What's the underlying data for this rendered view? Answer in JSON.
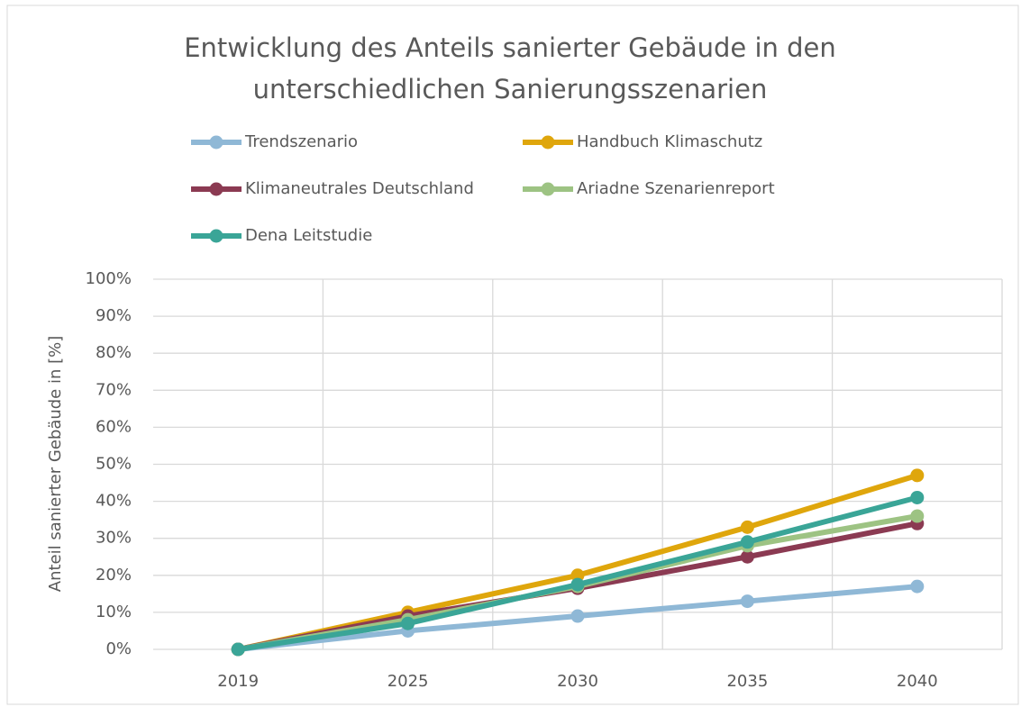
{
  "chart_data": {
    "type": "line",
    "title": "Entwicklung des Anteils sanierter Gebäude in den unterschiedlichen Sanierungsszenarien",
    "y_label": "Anteil sanierter Gebäude in [%]",
    "categories": [
      "2019",
      "2025",
      "2030",
      "2035",
      "2040"
    ],
    "series": [
      {
        "name": "Trendszenario",
        "color": "#8fb8d6",
        "values": [
          0,
          5,
          9,
          13,
          17
        ]
      },
      {
        "name": "Handbuch Klimaschutz",
        "color": "#dfa60c",
        "values": [
          0,
          10,
          20,
          33,
          47
        ]
      },
      {
        "name": "Klimaneutrales Deutschland",
        "color": "#8b3a52",
        "values": [
          0,
          9,
          16.5,
          25,
          34
        ]
      },
      {
        "name": "Ariadne Szenarienreport",
        "color": "#9dc383",
        "values": [
          0,
          8,
          17,
          28,
          36
        ]
      },
      {
        "name": "Dena Leitstudie",
        "color": "#3aa597",
        "values": [
          0,
          7,
          17.5,
          29,
          41
        ]
      }
    ],
    "ylim": [
      0,
      100
    ],
    "yticks": [
      {
        "value": 0,
        "label": "0%"
      },
      {
        "value": 10,
        "label": "10%"
      },
      {
        "value": 20,
        "label": "20%"
      },
      {
        "value": 30,
        "label": "30%"
      },
      {
        "value": 40,
        "label": "40%"
      },
      {
        "value": 50,
        "label": "50%"
      },
      {
        "value": 60,
        "label": "60%"
      },
      {
        "value": 70,
        "label": "70%"
      },
      {
        "value": 80,
        "label": "80%"
      },
      {
        "value": 90,
        "label": "90%"
      },
      {
        "value": 100,
        "label": "100%"
      }
    ],
    "grid": true
  }
}
